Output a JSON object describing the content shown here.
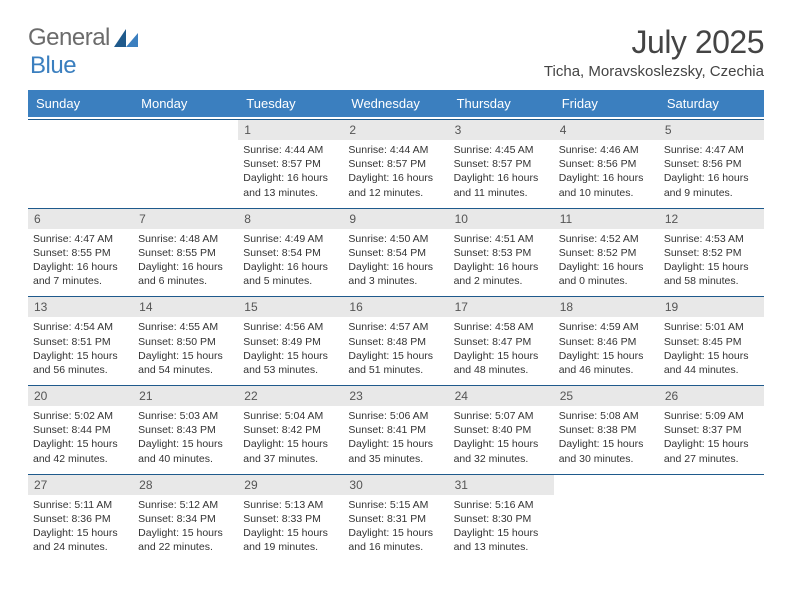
{
  "brand": {
    "word1": "General",
    "word2": "Blue",
    "accent_color": "#3b7fbf",
    "gray_color": "#6b6b6b"
  },
  "title": "July 2025",
  "location": "Ticha, Moravskoslezsky, Czechia",
  "colors": {
    "header_bg": "#3b7fbf",
    "header_text": "#ffffff",
    "week_border": "#1f5a8c",
    "daynum_bg": "#e8e8e8",
    "daynum_text": "#555555",
    "body_text": "#333333",
    "page_bg": "#ffffff"
  },
  "typography": {
    "title_fontsize": 32,
    "subtitle_fontsize": 15,
    "dow_fontsize": 13,
    "daynum_fontsize": 12,
    "content_fontsize": 10.5
  },
  "days_of_week": [
    "Sunday",
    "Monday",
    "Tuesday",
    "Wednesday",
    "Thursday",
    "Friday",
    "Saturday"
  ],
  "weeks": [
    [
      {
        "empty": true
      },
      {
        "empty": true
      },
      {
        "num": "1",
        "sunrise": "4:44 AM",
        "sunset": "8:57 PM",
        "daylight": "16 hours and 13 minutes."
      },
      {
        "num": "2",
        "sunrise": "4:44 AM",
        "sunset": "8:57 PM",
        "daylight": "16 hours and 12 minutes."
      },
      {
        "num": "3",
        "sunrise": "4:45 AM",
        "sunset": "8:57 PM",
        "daylight": "16 hours and 11 minutes."
      },
      {
        "num": "4",
        "sunrise": "4:46 AM",
        "sunset": "8:56 PM",
        "daylight": "16 hours and 10 minutes."
      },
      {
        "num": "5",
        "sunrise": "4:47 AM",
        "sunset": "8:56 PM",
        "daylight": "16 hours and 9 minutes."
      }
    ],
    [
      {
        "num": "6",
        "sunrise": "4:47 AM",
        "sunset": "8:55 PM",
        "daylight": "16 hours and 7 minutes."
      },
      {
        "num": "7",
        "sunrise": "4:48 AM",
        "sunset": "8:55 PM",
        "daylight": "16 hours and 6 minutes."
      },
      {
        "num": "8",
        "sunrise": "4:49 AM",
        "sunset": "8:54 PM",
        "daylight": "16 hours and 5 minutes."
      },
      {
        "num": "9",
        "sunrise": "4:50 AM",
        "sunset": "8:54 PM",
        "daylight": "16 hours and 3 minutes."
      },
      {
        "num": "10",
        "sunrise": "4:51 AM",
        "sunset": "8:53 PM",
        "daylight": "16 hours and 2 minutes."
      },
      {
        "num": "11",
        "sunrise": "4:52 AM",
        "sunset": "8:52 PM",
        "daylight": "16 hours and 0 minutes."
      },
      {
        "num": "12",
        "sunrise": "4:53 AM",
        "sunset": "8:52 PM",
        "daylight": "15 hours and 58 minutes."
      }
    ],
    [
      {
        "num": "13",
        "sunrise": "4:54 AM",
        "sunset": "8:51 PM",
        "daylight": "15 hours and 56 minutes."
      },
      {
        "num": "14",
        "sunrise": "4:55 AM",
        "sunset": "8:50 PM",
        "daylight": "15 hours and 54 minutes."
      },
      {
        "num": "15",
        "sunrise": "4:56 AM",
        "sunset": "8:49 PM",
        "daylight": "15 hours and 53 minutes."
      },
      {
        "num": "16",
        "sunrise": "4:57 AM",
        "sunset": "8:48 PM",
        "daylight": "15 hours and 51 minutes."
      },
      {
        "num": "17",
        "sunrise": "4:58 AM",
        "sunset": "8:47 PM",
        "daylight": "15 hours and 48 minutes."
      },
      {
        "num": "18",
        "sunrise": "4:59 AM",
        "sunset": "8:46 PM",
        "daylight": "15 hours and 46 minutes."
      },
      {
        "num": "19",
        "sunrise": "5:01 AM",
        "sunset": "8:45 PM",
        "daylight": "15 hours and 44 minutes."
      }
    ],
    [
      {
        "num": "20",
        "sunrise": "5:02 AM",
        "sunset": "8:44 PM",
        "daylight": "15 hours and 42 minutes."
      },
      {
        "num": "21",
        "sunrise": "5:03 AM",
        "sunset": "8:43 PM",
        "daylight": "15 hours and 40 minutes."
      },
      {
        "num": "22",
        "sunrise": "5:04 AM",
        "sunset": "8:42 PM",
        "daylight": "15 hours and 37 minutes."
      },
      {
        "num": "23",
        "sunrise": "5:06 AM",
        "sunset": "8:41 PM",
        "daylight": "15 hours and 35 minutes."
      },
      {
        "num": "24",
        "sunrise": "5:07 AM",
        "sunset": "8:40 PM",
        "daylight": "15 hours and 32 minutes."
      },
      {
        "num": "25",
        "sunrise": "5:08 AM",
        "sunset": "8:38 PM",
        "daylight": "15 hours and 30 minutes."
      },
      {
        "num": "26",
        "sunrise": "5:09 AM",
        "sunset": "8:37 PM",
        "daylight": "15 hours and 27 minutes."
      }
    ],
    [
      {
        "num": "27",
        "sunrise": "5:11 AM",
        "sunset": "8:36 PM",
        "daylight": "15 hours and 24 minutes."
      },
      {
        "num": "28",
        "sunrise": "5:12 AM",
        "sunset": "8:34 PM",
        "daylight": "15 hours and 22 minutes."
      },
      {
        "num": "29",
        "sunrise": "5:13 AM",
        "sunset": "8:33 PM",
        "daylight": "15 hours and 19 minutes."
      },
      {
        "num": "30",
        "sunrise": "5:15 AM",
        "sunset": "8:31 PM",
        "daylight": "15 hours and 16 minutes."
      },
      {
        "num": "31",
        "sunrise": "5:16 AM",
        "sunset": "8:30 PM",
        "daylight": "15 hours and 13 minutes."
      },
      {
        "empty": true
      },
      {
        "empty": true
      }
    ]
  ],
  "labels": {
    "sunrise": "Sunrise:",
    "sunset": "Sunset:",
    "daylight": "Daylight:"
  }
}
